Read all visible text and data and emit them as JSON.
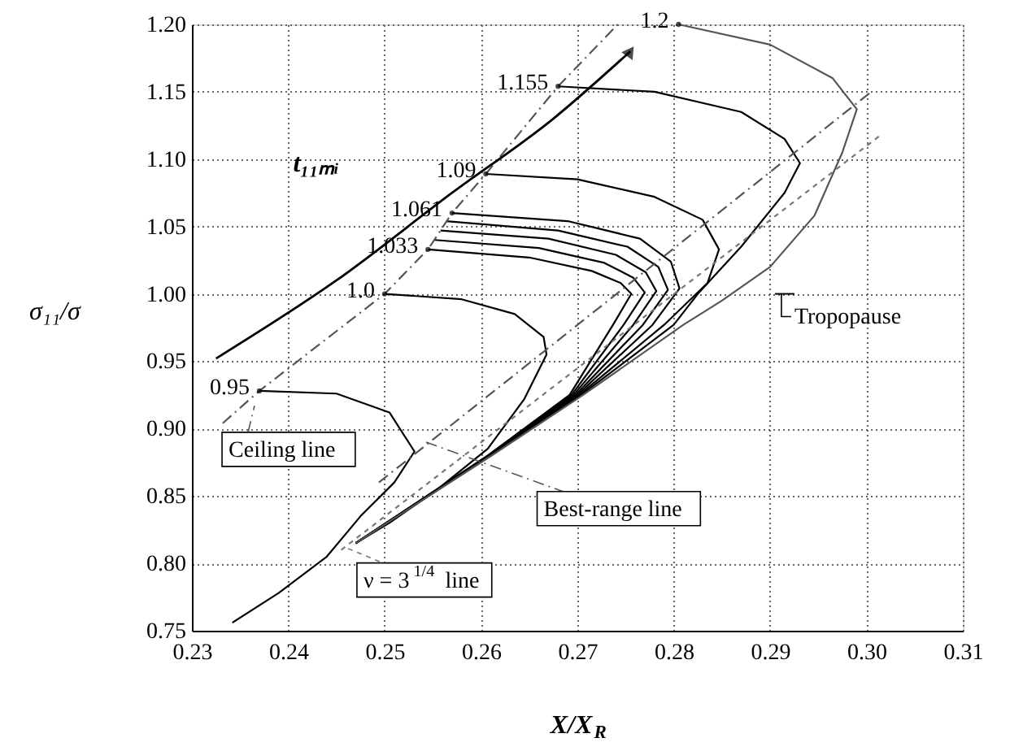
{
  "chart_data": {
    "type": "line",
    "xlabel": "X/X$_{R}$",
    "ylabel": "σ₁₁/σ",
    "xlim": [
      0.23,
      0.31
    ],
    "ylim": [
      0.75,
      1.2
    ],
    "xticks": [
      0.23,
      0.24,
      0.25,
      0.26,
      0.27,
      0.28,
      0.29,
      {
        "value": 0.3,
        "label": "0.30"
      },
      0.31
    ],
    "yticks": [
      0.75,
      {
        "value": 0.8,
        "label": "0.80"
      },
      0.85,
      {
        "value": 0.9,
        "label": "0.90"
      },
      0.95,
      {
        "value": 1.0,
        "label": "1.00"
      },
      1.05,
      {
        "value": 1.1,
        "label": "1.10"
      },
      1.15,
      {
        "value": 1.2,
        "label": "1.20"
      }
    ],
    "grid": true,
    "legend": "bottom left",
    "marker": "none",
    "line_style": "solid",
    "series": [
      {
        "name": "0.95",
        "color": "#000000",
        "x": [
          0.237,
          0.245,
          0.2505,
          0.2531,
          0.251,
          0.2475,
          0.244,
          0.239,
          0.2342
        ],
        "values": [
          0.928,
          0.926,
          0.912,
          0.883,
          0.86,
          0.835,
          0.805,
          0.778,
          0.756
        ]
      },
      {
        "name": "1.0",
        "color": "#000000",
        "x": [
          0.25,
          0.258,
          0.2635,
          0.2665,
          0.2668,
          0.2645,
          0.2607,
          0.2555,
          0.2505,
          0.247
        ],
        "values": [
          1.0,
          0.996,
          0.985,
          0.968,
          0.955,
          0.922,
          0.885,
          0.855,
          0.83,
          0.815
        ]
      },
      {
        "name": "1.033",
        "color": "#000000",
        "x": [
          0.2545,
          0.265,
          0.2715,
          0.2745,
          0.2756,
          0.2737,
          0.2692,
          0.2607,
          0.247
        ],
        "values": [
          1.033,
          1.027,
          1.017,
          1.008,
          1.0,
          0.977,
          0.925,
          0.88,
          0.815
        ]
      },
      {
        "color": "#000000",
        "x": [
          0.2552,
          0.266,
          0.2728,
          0.2758,
          0.277,
          0.2748,
          0.2694,
          0.2608,
          0.247
        ],
        "values": [
          1.04,
          1.034,
          1.023,
          1.012,
          1.001,
          0.977,
          0.925,
          0.88,
          0.815
        ]
      },
      {
        "color": "#000000",
        "x": [
          0.2558,
          0.267,
          0.274,
          0.2771,
          0.2782,
          0.2758,
          0.2696,
          0.2608,
          0.247
        ],
        "values": [
          1.047,
          1.041,
          1.029,
          1.016,
          1.002,
          0.977,
          0.925,
          0.88,
          0.815
        ]
      },
      {
        "color": "#000000",
        "x": [
          0.2564,
          0.268,
          0.2752,
          0.2784,
          0.2794,
          0.2768,
          0.2698,
          0.2609,
          0.247
        ],
        "values": [
          1.054,
          1.047,
          1.035,
          1.02,
          1.003,
          0.977,
          0.925,
          0.88,
          0.815
        ]
      },
      {
        "name": "1.061",
        "color": "#000000",
        "x": [
          0.257,
          0.269,
          0.2765,
          0.2797,
          0.2806,
          0.2778,
          0.27,
          0.2609,
          0.247
        ],
        "values": [
          1.06,
          1.054,
          1.041,
          1.024,
          1.004,
          0.977,
          0.925,
          0.88,
          0.815
        ]
      },
      {
        "name": "1.09",
        "color": "#000000",
        "x": [
          0.2605,
          0.27,
          0.278,
          0.283,
          0.2847,
          0.2835,
          0.279,
          0.2702,
          0.261,
          0.247
        ],
        "values": [
          1.089,
          1.085,
          1.072,
          1.055,
          1.033,
          1.008,
          0.977,
          0.925,
          0.88,
          0.815
        ]
      },
      {
        "name": "1.155",
        "color": "#000000",
        "x": [
          0.268,
          0.278,
          0.287,
          0.2915,
          0.2931,
          0.2915,
          0.287,
          0.2825,
          0.28,
          0.2704,
          0.261,
          0.247
        ],
        "values": [
          1.154,
          1.15,
          1.135,
          1.115,
          1.097,
          1.075,
          1.035,
          1.0,
          0.977,
          0.925,
          0.88,
          0.815
        ]
      },
      {
        "name": "1.2",
        "color": "#555555",
        "x": [
          0.2805,
          0.29,
          0.2965,
          0.299,
          0.2975,
          0.2946,
          0.29,
          0.285,
          0.281,
          0.2706,
          0.2611,
          0.247
        ],
        "values": [
          1.2,
          1.185,
          1.16,
          1.137,
          1.105,
          1.058,
          1.02,
          0.995,
          0.977,
          0.925,
          0.88,
          0.815
        ]
      },
      {
        "name": "Ceiling line",
        "color": "#555555",
        "line_style": "dashed",
        "x": [
          0.2332,
          0.237,
          0.25,
          0.2545,
          0.257,
          0.2605,
          0.268,
          0.2742
        ],
        "values": [
          0.904,
          0.928,
          1.0,
          1.033,
          1.06,
          1.089,
          1.154,
          1.2
        ]
      },
      {
        "name": "Best-range line",
        "color": "#555555",
        "line_style": "dashed",
        "x": [
          0.2494,
          0.3005
        ],
        "values": [
          0.86,
          1.15
        ]
      },
      {
        "name": "ν = 3$^{1/4}$ line",
        "color": "#777777",
        "line_style": "dotted",
        "x": [
          0.2455,
          0.3015
        ],
        "values": [
          0.81,
          1.118
        ]
      }
    ],
    "annotations": [
      "t₁₁ₘᵢ",
      "Tropopause"
    ]
  }
}
